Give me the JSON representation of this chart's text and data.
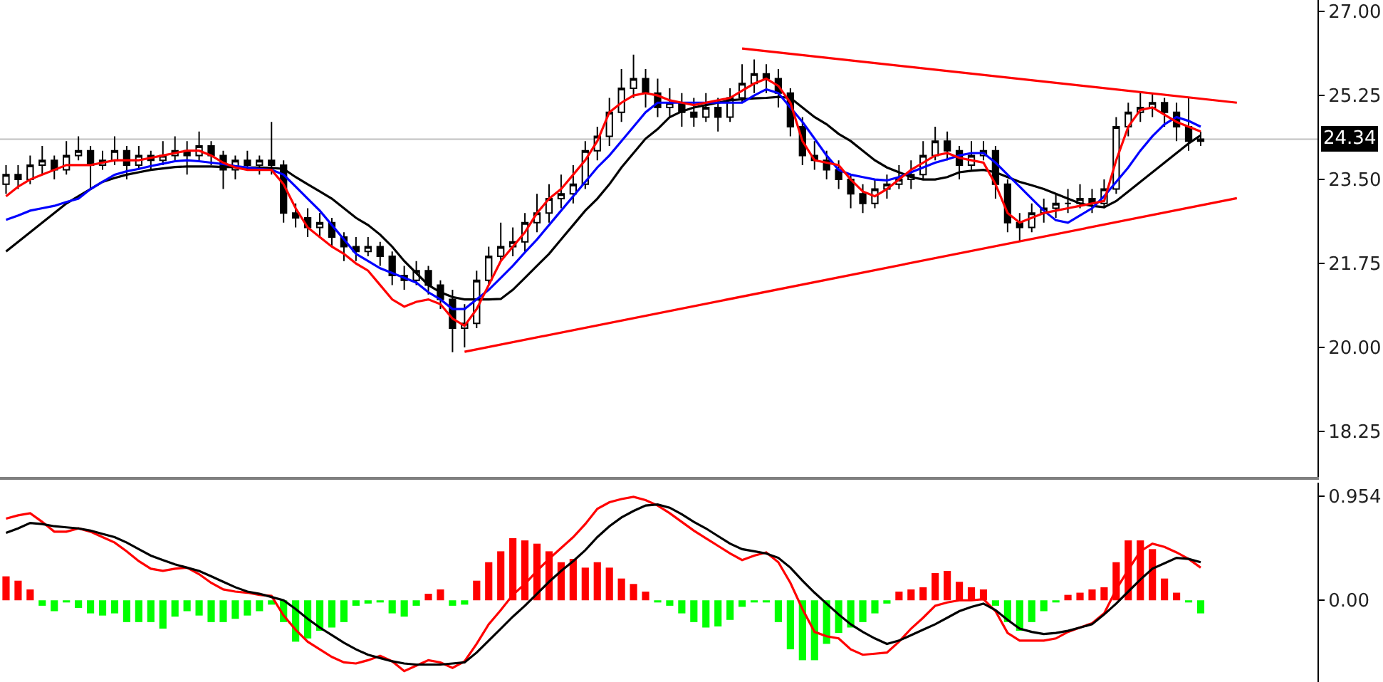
{
  "chart_data": [
    {
      "type": "candlestick",
      "categories": [
        null,
        null,
        null,
        null,
        null,
        null,
        null,
        null,
        null,
        null,
        null,
        null,
        null,
        null,
        null,
        null,
        null,
        null,
        null,
        null,
        null,
        null,
        null,
        null,
        null,
        null,
        null,
        null,
        null,
        null,
        null,
        null,
        null,
        null,
        null,
        null,
        null,
        null,
        null,
        null,
        null,
        null,
        null,
        null,
        null,
        null,
        null,
        null,
        null,
        null,
        null,
        null,
        null,
        null,
        null,
        null,
        null,
        null,
        null,
        null,
        null,
        null,
        null,
        null,
        null,
        null,
        null,
        null,
        null,
        null,
        null,
        null,
        null,
        null,
        null,
        null,
        null,
        null,
        null,
        null,
        null,
        null,
        null,
        null,
        null,
        null,
        null,
        null,
        null,
        null,
        null,
        null,
        null,
        null,
        null,
        null,
        null,
        null,
        null,
        null,
        null,
        null,
        null
      ],
      "ohlc": [
        [
          23.4,
          23.8,
          23.2,
          23.6
        ],
        [
          23.6,
          23.8,
          23.3,
          23.5
        ],
        [
          23.5,
          24.0,
          23.4,
          23.8
        ],
        [
          23.8,
          24.2,
          23.6,
          23.9
        ],
        [
          23.9,
          24.0,
          23.5,
          23.7
        ],
        [
          23.7,
          24.3,
          23.6,
          24.0
        ],
        [
          24.0,
          24.4,
          23.9,
          24.1
        ],
        [
          24.1,
          24.2,
          23.3,
          23.8
        ],
        [
          23.8,
          24.1,
          23.7,
          23.9
        ],
        [
          23.9,
          24.4,
          23.8,
          24.1
        ],
        [
          24.1,
          24.2,
          23.5,
          23.8
        ],
        [
          23.8,
          24.2,
          23.7,
          24.0
        ],
        [
          24.0,
          24.1,
          23.7,
          23.9
        ],
        [
          23.9,
          24.3,
          23.8,
          24.0
        ],
        [
          24.0,
          24.4,
          23.9,
          24.1
        ],
        [
          24.1,
          24.3,
          23.6,
          24.0
        ],
        [
          24.0,
          24.5,
          23.9,
          24.2
        ],
        [
          24.2,
          24.3,
          23.8,
          24.0
        ],
        [
          24.0,
          24.1,
          23.3,
          23.7
        ],
        [
          23.7,
          24.0,
          23.5,
          23.9
        ],
        [
          23.9,
          24.1,
          23.7,
          23.8
        ],
        [
          23.8,
          24.0,
          23.6,
          23.9
        ],
        [
          23.9,
          24.7,
          23.6,
          23.8
        ],
        [
          23.8,
          23.9,
          22.6,
          22.8
        ],
        [
          22.8,
          23.0,
          22.5,
          22.7
        ],
        [
          22.7,
          22.9,
          22.3,
          22.5
        ],
        [
          22.5,
          22.8,
          22.3,
          22.6
        ],
        [
          22.6,
          22.7,
          22.1,
          22.3
        ],
        [
          22.3,
          22.4,
          21.8,
          22.1
        ],
        [
          22.1,
          22.3,
          21.8,
          22.0
        ],
        [
          22.0,
          22.3,
          21.9,
          22.1
        ],
        [
          22.1,
          22.2,
          21.7,
          21.9
        ],
        [
          21.9,
          22.0,
          21.3,
          21.5
        ],
        [
          21.5,
          21.7,
          21.2,
          21.4
        ],
        [
          21.4,
          21.8,
          21.3,
          21.6
        ],
        [
          21.6,
          21.7,
          21.1,
          21.3
        ],
        [
          21.3,
          21.4,
          20.8,
          21.0
        ],
        [
          21.0,
          21.2,
          19.9,
          20.4
        ],
        [
          20.4,
          20.9,
          20.0,
          20.5
        ],
        [
          20.5,
          21.6,
          20.4,
          21.4
        ],
        [
          21.4,
          22.1,
          21.3,
          21.9
        ],
        [
          21.9,
          22.6,
          21.8,
          22.1
        ],
        [
          22.1,
          22.5,
          21.9,
          22.2
        ],
        [
          22.2,
          22.8,
          22.0,
          22.6
        ],
        [
          22.6,
          23.2,
          22.4,
          22.8
        ],
        [
          22.8,
          23.4,
          22.6,
          23.1
        ],
        [
          23.1,
          23.6,
          22.9,
          23.2
        ],
        [
          23.2,
          23.8,
          23.0,
          23.4
        ],
        [
          23.4,
          24.3,
          23.3,
          24.1
        ],
        [
          24.1,
          24.6,
          23.9,
          24.4
        ],
        [
          24.4,
          25.2,
          24.2,
          24.9
        ],
        [
          24.9,
          25.8,
          24.7,
          25.4
        ],
        [
          25.4,
          26.1,
          25.2,
          25.6
        ],
        [
          25.6,
          25.8,
          25.0,
          25.3
        ],
        [
          25.3,
          25.6,
          24.8,
          25.0
        ],
        [
          25.0,
          25.4,
          24.8,
          25.1
        ],
        [
          25.1,
          25.3,
          24.6,
          24.9
        ],
        [
          24.9,
          25.2,
          24.6,
          24.8
        ],
        [
          24.8,
          25.3,
          24.7,
          25.0
        ],
        [
          25.0,
          25.2,
          24.5,
          24.8
        ],
        [
          24.8,
          25.4,
          24.7,
          25.2
        ],
        [
          25.2,
          25.9,
          25.1,
          25.5
        ],
        [
          25.5,
          26.0,
          25.3,
          25.7
        ],
        [
          25.7,
          25.9,
          25.3,
          25.6
        ],
        [
          25.6,
          25.8,
          25.0,
          25.3
        ],
        [
          25.3,
          25.4,
          24.4,
          24.6
        ],
        [
          24.6,
          24.8,
          23.8,
          24.0
        ],
        [
          24.0,
          24.3,
          23.7,
          23.9
        ],
        [
          23.9,
          24.1,
          23.5,
          23.7
        ],
        [
          23.7,
          23.9,
          23.3,
          23.5
        ],
        [
          23.5,
          23.6,
          22.9,
          23.2
        ],
        [
          23.2,
          23.4,
          22.8,
          23.0
        ],
        [
          23.0,
          23.5,
          22.9,
          23.3
        ],
        [
          23.3,
          23.6,
          23.1,
          23.4
        ],
        [
          23.4,
          23.8,
          23.3,
          23.5
        ],
        [
          23.5,
          23.9,
          23.3,
          23.6
        ],
        [
          23.6,
          24.3,
          23.5,
          24.0
        ],
        [
          24.0,
          24.6,
          23.9,
          24.3
        ],
        [
          24.3,
          24.5,
          23.9,
          24.1
        ],
        [
          24.1,
          24.2,
          23.5,
          23.8
        ],
        [
          23.8,
          24.3,
          23.7,
          24.0
        ],
        [
          24.0,
          24.3,
          23.9,
          24.1
        ],
        [
          24.1,
          24.2,
          23.1,
          23.4
        ],
        [
          23.4,
          23.5,
          22.4,
          22.6
        ],
        [
          22.6,
          22.8,
          22.2,
          22.5
        ],
        [
          22.5,
          23.0,
          22.4,
          22.8
        ],
        [
          22.8,
          23.1,
          22.6,
          22.9
        ],
        [
          22.9,
          23.2,
          22.7,
          23.0
        ],
        [
          23.0,
          23.3,
          22.8,
          23.0
        ],
        [
          23.0,
          23.4,
          22.9,
          23.1
        ],
        [
          23.1,
          23.3,
          22.8,
          23.0
        ],
        [
          23.0,
          23.5,
          22.9,
          23.3
        ],
        [
          23.3,
          24.8,
          23.2,
          24.6
        ],
        [
          24.6,
          25.1,
          24.4,
          24.9
        ],
        [
          24.9,
          25.3,
          24.7,
          25.0
        ],
        [
          25.0,
          25.3,
          24.8,
          25.1
        ],
        [
          25.1,
          25.2,
          24.6,
          24.9
        ],
        [
          24.9,
          25.1,
          24.3,
          24.6
        ],
        [
          24.6,
          25.2,
          24.1,
          24.3
        ],
        [
          24.3,
          24.5,
          24.2,
          24.34
        ],
        null,
        null,
        null
      ],
      "series": [
        {
          "type": "line",
          "color": "#000000",
          "values": [
            22.0,
            22.2,
            22.4,
            22.6,
            22.8,
            23.0,
            23.15,
            23.3,
            23.45,
            23.53,
            23.6,
            23.65,
            23.7,
            23.73,
            23.76,
            23.77,
            23.77,
            23.77,
            23.76,
            23.76,
            23.75,
            23.75,
            23.74,
            23.72,
            23.55,
            23.4,
            23.25,
            23.1,
            22.9,
            22.7,
            22.55,
            22.35,
            22.1,
            21.8,
            21.55,
            21.3,
            21.15,
            21.05,
            21.0,
            21.0,
            21.0,
            21.01,
            21.2,
            21.45,
            21.7,
            21.95,
            22.25,
            22.55,
            22.85,
            23.1,
            23.4,
            23.75,
            24.05,
            24.35,
            24.55,
            24.8,
            24.92,
            25.0,
            25.05,
            25.1,
            25.15,
            25.17,
            25.19,
            25.2,
            25.22,
            25.2,
            25.0,
            24.8,
            24.65,
            24.45,
            24.3,
            24.1,
            23.9,
            23.75,
            23.65,
            23.55,
            23.5,
            23.5,
            23.55,
            23.65,
            23.68,
            23.7,
            23.65,
            23.55,
            23.45,
            23.38,
            23.3,
            23.2,
            23.1,
            23.0,
            22.95,
            22.92,
            23.05,
            23.25,
            23.45,
            23.65,
            23.85,
            24.05,
            24.25,
            24.42,
            null,
            null,
            null
          ]
        },
        {
          "type": "line",
          "color": "#0000ff",
          "values": [
            22.66,
            22.75,
            22.85,
            22.9,
            22.95,
            23.03,
            23.1,
            23.3,
            23.45,
            23.6,
            23.67,
            23.72,
            23.78,
            23.83,
            23.88,
            23.9,
            23.88,
            23.85,
            23.82,
            23.78,
            23.75,
            23.72,
            23.7,
            23.6,
            23.35,
            23.1,
            22.85,
            22.55,
            22.25,
            21.95,
            21.8,
            21.65,
            21.55,
            21.45,
            21.35,
            21.15,
            21.0,
            20.8,
            20.8,
            21.0,
            21.2,
            21.45,
            21.7,
            21.98,
            22.25,
            22.55,
            22.85,
            23.15,
            23.45,
            23.75,
            24.0,
            24.3,
            24.6,
            24.9,
            25.1,
            25.1,
            25.1,
            25.1,
            25.1,
            25.1,
            25.1,
            25.1,
            25.25,
            25.38,
            25.3,
            25.0,
            24.7,
            24.35,
            24.0,
            23.7,
            23.6,
            23.55,
            23.5,
            23.48,
            23.55,
            23.65,
            23.75,
            23.85,
            23.92,
            24.0,
            24.05,
            24.05,
            23.85,
            23.6,
            23.35,
            23.1,
            22.85,
            22.65,
            22.6,
            22.75,
            22.9,
            23.15,
            23.45,
            23.75,
            24.1,
            24.4,
            24.65,
            24.8,
            24.72,
            24.6,
            null,
            null,
            null
          ]
        },
        {
          "type": "line",
          "color": "#ff0000",
          "values": [
            23.15,
            23.35,
            23.5,
            23.6,
            23.7,
            23.8,
            23.8,
            23.8,
            23.85,
            23.9,
            23.9,
            23.9,
            23.95,
            24.0,
            24.05,
            24.1,
            24.1,
            24.0,
            23.85,
            23.75,
            23.7,
            23.7,
            23.7,
            23.4,
            22.9,
            22.5,
            22.3,
            22.1,
            21.95,
            21.75,
            21.6,
            21.3,
            21.0,
            20.85,
            20.95,
            21.0,
            20.9,
            20.6,
            20.45,
            20.8,
            21.3,
            21.8,
            22.1,
            22.4,
            22.8,
            23.1,
            23.3,
            23.6,
            23.9,
            24.3,
            24.9,
            25.1,
            25.25,
            25.3,
            25.25,
            25.15,
            25.1,
            25.05,
            25.1,
            25.15,
            25.2,
            25.35,
            25.5,
            25.6,
            25.45,
            25.1,
            24.3,
            23.9,
            23.85,
            23.8,
            23.5,
            23.25,
            23.15,
            23.3,
            23.5,
            23.7,
            23.85,
            24.0,
            24.05,
            23.95,
            23.9,
            23.85,
            23.4,
            22.8,
            22.6,
            22.7,
            22.8,
            22.85,
            22.9,
            22.95,
            23.0,
            23.05,
            23.9,
            24.6,
            24.95,
            25.0,
            24.85,
            24.7,
            24.6,
            24.5,
            null,
            null,
            null
          ]
        },
        {
          "type": "line",
          "color": "#ff0000",
          "values": [
            null,
            null,
            null,
            null,
            null,
            null,
            null,
            null,
            null,
            null,
            null,
            null,
            null,
            null,
            null,
            null,
            null,
            null,
            null,
            null,
            null,
            null,
            null,
            null,
            null,
            null,
            null,
            null,
            null,
            null,
            null,
            null,
            null,
            null,
            null,
            null,
            null,
            null,
            null,
            null,
            null,
            null,
            null,
            null,
            null,
            null,
            null,
            null,
            null,
            null,
            null,
            null,
            null,
            null,
            null,
            null,
            null,
            null,
            null,
            null,
            null,
            26.23,
            null,
            null,
            null,
            null,
            null,
            null,
            null,
            null,
            null,
            null,
            null,
            null,
            null,
            null,
            null,
            null,
            null,
            null,
            null,
            null,
            null,
            null,
            null,
            null,
            null,
            null,
            null,
            null,
            null,
            null,
            null,
            null,
            null,
            null,
            null,
            null,
            null,
            null,
            null,
            null,
            25.1
          ]
        },
        {
          "type": "line",
          "color": "#ff0000",
          "values": [
            null,
            null,
            null,
            null,
            null,
            null,
            null,
            null,
            null,
            null,
            null,
            null,
            null,
            null,
            null,
            null,
            null,
            null,
            null,
            null,
            null,
            null,
            null,
            null,
            null,
            null,
            null,
            null,
            null,
            null,
            null,
            null,
            null,
            null,
            null,
            null,
            null,
            null,
            19.91,
            null,
            null,
            null,
            null,
            null,
            null,
            null,
            null,
            null,
            null,
            null,
            null,
            null,
            null,
            null,
            null,
            null,
            null,
            null,
            null,
            null,
            null,
            null,
            null,
            null,
            null,
            null,
            null,
            null,
            null,
            null,
            null,
            null,
            null,
            null,
            null,
            null,
            null,
            null,
            null,
            null,
            null,
            null,
            null,
            null,
            null,
            null,
            null,
            null,
            null,
            null,
            null,
            null,
            null,
            null,
            null,
            null,
            null,
            null,
            null,
            null,
            null,
            null,
            23.11
          ]
        }
      ],
      "ylim": [
        17.3,
        27.24
      ],
      "yticks": [
        {
          "value": 27,
          "label": "27.00"
        },
        {
          "value": 25.25,
          "label": "25.25"
        },
        {
          "value": 23.5,
          "label": "23.50"
        },
        {
          "value": 21.75,
          "label": "21.75"
        },
        {
          "value": 20,
          "label": "20.00"
        },
        {
          "value": 18.25,
          "label": "18.25"
        }
      ],
      "ref_lines": [
        {
          "axis": "y",
          "value": 24.34,
          "label": "24.34",
          "color": "#c0c0c0"
        }
      ],
      "tick_labels": "y"
    },
    {
      "type": "bar",
      "categories": [
        null,
        null,
        null,
        null,
        null,
        null,
        null,
        null,
        null,
        null,
        null,
        null,
        null,
        null,
        null,
        null,
        null,
        null,
        null,
        null,
        null,
        null,
        null,
        null,
        null,
        null,
        null,
        null,
        null,
        null,
        null,
        null,
        null,
        null,
        null,
        null,
        null,
        null,
        null,
        null,
        null,
        null,
        null,
        null,
        null,
        null,
        null,
        null,
        null,
        null,
        null,
        null,
        null,
        null,
        null,
        null,
        null,
        null,
        null,
        null,
        null,
        null,
        null,
        null,
        null,
        null,
        null,
        null,
        null,
        null,
        null,
        null,
        null,
        null,
        null,
        null,
        null,
        null,
        null,
        null,
        null,
        null,
        null,
        null,
        null,
        null,
        null,
        null,
        null,
        null,
        null,
        null,
        null,
        null,
        null,
        null,
        null,
        null,
        null,
        null,
        null,
        null,
        null
      ],
      "series": [
        {
          "type": "bar",
          "values": [
            0.22,
            0.18,
            0.1,
            -0.05,
            -0.1,
            -0.02,
            -0.07,
            -0.12,
            -0.14,
            -0.12,
            -0.2,
            -0.2,
            -0.2,
            -0.26,
            -0.15,
            -0.1,
            -0.14,
            -0.2,
            -0.2,
            -0.17,
            -0.14,
            -0.1,
            -0.04,
            -0.2,
            -0.38,
            -0.35,
            -0.28,
            -0.25,
            -0.2,
            -0.05,
            -0.03,
            -0.02,
            -0.12,
            -0.15,
            -0.05,
            0.06,
            0.1,
            -0.05,
            -0.04,
            0.18,
            0.35,
            0.45,
            0.57,
            0.55,
            0.52,
            0.45,
            0.35,
            0.38,
            0.3,
            0.35,
            0.3,
            0.2,
            0.15,
            0.08,
            -0.02,
            -0.05,
            -0.12,
            -0.2,
            -0.25,
            -0.24,
            -0.18,
            -0.06,
            -0.02,
            -0.02,
            -0.2,
            -0.45,
            -0.55,
            -0.55,
            -0.4,
            -0.3,
            -0.25,
            -0.2,
            -0.12,
            -0.03,
            0.08,
            0.1,
            0.12,
            0.25,
            0.27,
            0.17,
            0.12,
            0.1,
            -0.05,
            -0.2,
            -0.28,
            -0.2,
            -0.1,
            -0.02,
            0.05,
            0.07,
            0.1,
            0.12,
            0.35,
            0.55,
            0.55,
            0.47,
            0.2,
            0.07,
            -0.02,
            -0.12,
            null,
            null,
            null
          ],
          "colors": [
            "#ff0000",
            "#ff0000",
            "#ff0000",
            "#00ff00",
            "#00ff00",
            "#00ff00",
            "#00ff00",
            "#00ff00",
            "#00ff00",
            "#00ff00",
            "#00ff00",
            "#00ff00",
            "#00ff00",
            "#00ff00",
            "#00ff00",
            "#00ff00",
            "#00ff00",
            "#00ff00",
            "#00ff00",
            "#00ff00",
            "#00ff00",
            "#00ff00",
            "#00ff00",
            "#00ff00",
            "#00ff00",
            "#00ff00",
            "#00ff00",
            "#00ff00",
            "#00ff00",
            "#00ff00",
            "#00ff00",
            "#00ff00",
            "#00ff00",
            "#00ff00",
            "#00ff00",
            "#ff0000",
            "#ff0000",
            "#00ff00",
            "#00ff00",
            "#ff0000",
            "#ff0000",
            "#ff0000",
            "#ff0000",
            "#ff0000",
            "#ff0000",
            "#ff0000",
            "#ff0000",
            "#ff0000",
            "#ff0000",
            "#ff0000",
            "#ff0000",
            "#ff0000",
            "#ff0000",
            "#ff0000",
            "#00ff00",
            "#00ff00",
            "#00ff00",
            "#00ff00",
            "#00ff00",
            "#00ff00",
            "#00ff00",
            "#00ff00",
            "#00ff00",
            "#00ff00",
            "#00ff00",
            "#00ff00",
            "#00ff00",
            "#00ff00",
            "#00ff00",
            "#00ff00",
            "#00ff00",
            "#00ff00",
            "#00ff00",
            "#00ff00",
            "#ff0000",
            "#ff0000",
            "#ff0000",
            "#ff0000",
            "#ff0000",
            "#ff0000",
            "#ff0000",
            "#ff0000",
            "#00ff00",
            "#00ff00",
            "#00ff00",
            "#00ff00",
            "#00ff00",
            "#00ff00",
            "#ff0000",
            "#ff0000",
            "#ff0000",
            "#ff0000",
            "#ff0000",
            "#ff0000",
            "#ff0000",
            "#ff0000",
            "#ff0000",
            "#ff0000",
            "#00ff00",
            "#00ff00",
            null,
            null,
            null
          ]
        },
        {
          "type": "line",
          "color": "#ff0000",
          "values": [
            0.75,
            0.78,
            0.8,
            0.72,
            0.63,
            0.63,
            0.66,
            0.63,
            0.58,
            0.53,
            0.45,
            0.36,
            0.29,
            0.27,
            0.29,
            0.3,
            0.24,
            0.16,
            0.1,
            0.08,
            0.07,
            0.05,
            0.04,
            -0.14,
            -0.27,
            -0.38,
            -0.45,
            -0.52,
            -0.57,
            -0.58,
            -0.55,
            -0.51,
            -0.56,
            -0.65,
            -0.6,
            -0.55,
            -0.57,
            -0.62,
            -0.56,
            -0.4,
            -0.22,
            -0.09,
            0.05,
            0.15,
            0.27,
            0.38,
            0.48,
            0.58,
            0.7,
            0.84,
            0.9,
            0.93,
            0.95,
            0.92,
            0.87,
            0.8,
            0.72,
            0.64,
            0.57,
            0.5,
            0.43,
            0.37,
            0.41,
            0.44,
            0.35,
            0.16,
            -0.08,
            -0.29,
            -0.33,
            -0.35,
            -0.45,
            -0.5,
            -0.49,
            -0.48,
            -0.38,
            -0.26,
            -0.16,
            -0.05,
            -0.02,
            0.0,
            0.0,
            0.01,
            -0.1,
            -0.3,
            -0.37,
            -0.37,
            -0.37,
            -0.35,
            -0.29,
            -0.25,
            -0.21,
            -0.12,
            0.1,
            0.28,
            0.45,
            0.52,
            0.49,
            0.44,
            0.38,
            0.3,
            null,
            null,
            null
          ]
        },
        {
          "type": "line",
          "color": "#000000",
          "values": [
            0.62,
            0.66,
            0.71,
            0.7,
            0.68,
            0.67,
            0.66,
            0.64,
            0.61,
            0.58,
            0.53,
            0.47,
            0.41,
            0.37,
            0.33,
            0.3,
            0.27,
            0.22,
            0.17,
            0.12,
            0.08,
            0.06,
            0.03,
            0.0,
            -0.08,
            -0.17,
            -0.25,
            -0.32,
            -0.39,
            -0.45,
            -0.5,
            -0.53,
            -0.56,
            -0.58,
            -0.59,
            -0.59,
            -0.59,
            -0.58,
            -0.57,
            -0.48,
            -0.37,
            -0.26,
            -0.15,
            -0.05,
            0.06,
            0.17,
            0.27,
            0.36,
            0.46,
            0.58,
            0.68,
            0.76,
            0.82,
            0.87,
            0.88,
            0.85,
            0.79,
            0.72,
            0.66,
            0.59,
            0.52,
            0.47,
            0.45,
            0.43,
            0.39,
            0.3,
            0.18,
            0.07,
            -0.03,
            -0.13,
            -0.22,
            -0.29,
            -0.35,
            -0.4,
            -0.37,
            -0.32,
            -0.27,
            -0.22,
            -0.16,
            -0.1,
            -0.06,
            -0.03,
            -0.09,
            -0.18,
            -0.26,
            -0.29,
            -0.31,
            -0.3,
            -0.28,
            -0.25,
            -0.22,
            -0.13,
            -0.03,
            0.08,
            0.19,
            0.29,
            0.34,
            0.39,
            0.38,
            0.35,
            null,
            null,
            null
          ]
        }
      ],
      "ylim": [
        -0.75,
        1.08
      ],
      "yticks": [
        {
          "value": 0.954,
          "label": "0.954"
        },
        {
          "value": 0,
          "label": "0.00"
        }
      ],
      "tick_labels": "y"
    }
  ]
}
